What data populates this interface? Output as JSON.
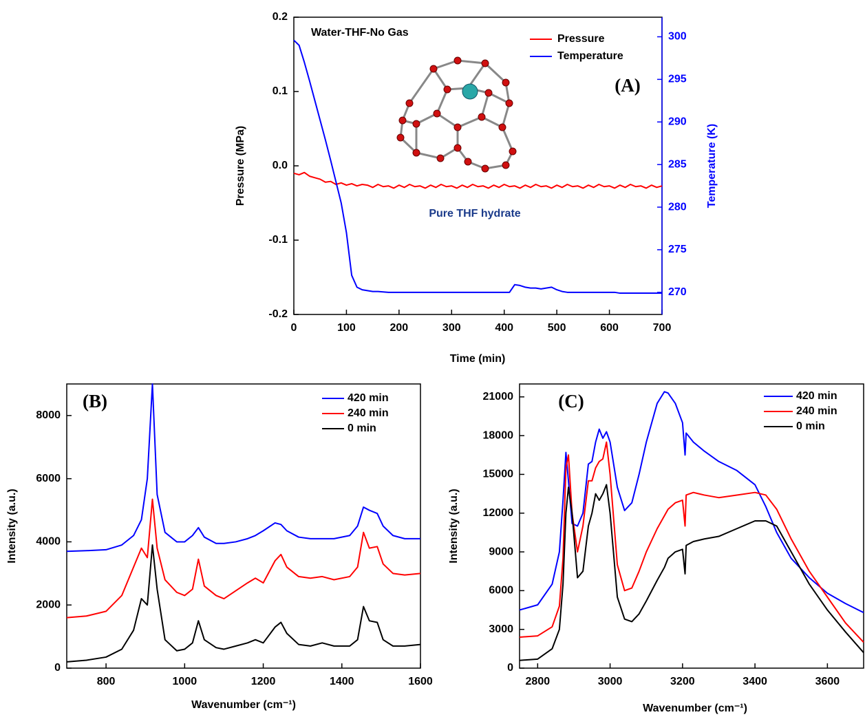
{
  "chart_data": [
    {
      "type": "line",
      "x": [
        0,
        10,
        20,
        30,
        40,
        50,
        60,
        70,
        80,
        90,
        100,
        110,
        120,
        130,
        140,
        150,
        160,
        170,
        180,
        190,
        200,
        210,
        220,
        230,
        240,
        250,
        260,
        270,
        280,
        290,
        300,
        310,
        320,
        330,
        340,
        350,
        360,
        370,
        380,
        390,
        400,
        410,
        420,
        430,
        440,
        450,
        460,
        470,
        480,
        490,
        500,
        510,
        520,
        530,
        540,
        550,
        560,
        570,
        580,
        590,
        600,
        610,
        620,
        630,
        640,
        650,
        660,
        670,
        680,
        690,
        700
      ],
      "series": [
        {
          "name": "Pressure",
          "color": "#ff0000",
          "values": [
            -0.01,
            -0.012,
            -0.009,
            -0.014,
            -0.016,
            -0.018,
            -0.022,
            -0.021,
            -0.025,
            -0.023,
            -0.026,
            -0.024,
            -0.027,
            -0.025,
            -0.026,
            -0.029,
            -0.025,
            -0.028,
            -0.027,
            -0.03,
            -0.026,
            -0.029,
            -0.025,
            -0.028,
            -0.027,
            -0.03,
            -0.026,
            -0.029,
            -0.025,
            -0.028,
            -0.027,
            -0.03,
            -0.026,
            -0.029,
            -0.025,
            -0.028,
            -0.027,
            -0.03,
            -0.026,
            -0.029,
            -0.025,
            -0.028,
            -0.027,
            -0.03,
            -0.026,
            -0.029,
            -0.025,
            -0.028,
            -0.027,
            -0.03,
            -0.026,
            -0.029,
            -0.025,
            -0.028,
            -0.027,
            -0.03,
            -0.026,
            -0.029,
            -0.025,
            -0.028,
            -0.027,
            -0.03,
            -0.026,
            -0.029,
            -0.025,
            -0.028,
            -0.027,
            -0.03,
            -0.026,
            -0.029,
            -0.027
          ]
        },
        {
          "name": "Temperature",
          "color": "#0000ff",
          "axis": "y2",
          "values": [
            299.6,
            299.0,
            297.0,
            294.8,
            292.5,
            290.2,
            287.9,
            285.5,
            283.0,
            280.5,
            277.0,
            272.0,
            270.6,
            270.3,
            270.2,
            270.1,
            270.1,
            270.05,
            270.0,
            270.0,
            270.0,
            270.0,
            270.0,
            270.0,
            270.0,
            270.0,
            270.0,
            270.0,
            270.0,
            270.0,
            270.0,
            270.0,
            270.0,
            270.0,
            270.0,
            270.0,
            270.0,
            270.0,
            270.0,
            270.0,
            270.0,
            270.0,
            270.9,
            270.8,
            270.6,
            270.5,
            270.5,
            270.4,
            270.5,
            270.6,
            270.3,
            270.1,
            270.0,
            270.0,
            270.0,
            270.0,
            270.0,
            270.0,
            270.0,
            270.0,
            270.0,
            270.0,
            269.9,
            269.9,
            269.9,
            269.9,
            269.9,
            269.9,
            269.9,
            269.9,
            269.9
          ]
        }
      ],
      "xlim": [
        0,
        700
      ],
      "ylim": [
        -0.2,
        0.2
      ],
      "y2lim": [
        267.4,
        302.3
      ],
      "xticks": [
        0,
        100,
        200,
        300,
        400,
        500,
        600,
        700
      ],
      "yticks": [
        -0.2,
        -0.1,
        {
          "value": 0,
          "label": "0.0"
        },
        0.1,
        0.2
      ],
      "y2ticks": [
        270,
        275,
        280,
        285,
        290,
        295,
        300
      ],
      "xlabel": "Time (min)",
      "ylabel": "Pressure (MPa)",
      "y2label": "Temperature (K)",
      "annotations": [
        "Water-THF-No Gas",
        "(A)",
        "Pure THF hydrate"
      ],
      "legend": "upper right"
    },
    {
      "type": "line",
      "x": [
        700,
        750,
        800,
        840,
        870,
        890,
        905,
        918,
        930,
        950,
        980,
        1000,
        1020,
        1035,
        1050,
        1080,
        1100,
        1130,
        1160,
        1180,
        1200,
        1230,
        1245,
        1260,
        1290,
        1320,
        1350,
        1380,
        1420,
        1440,
        1455,
        1470,
        1490,
        1505,
        1530,
        1560,
        1600
      ],
      "series": [
        {
          "name": "420 min",
          "color": "#0000ff",
          "values": [
            3700,
            3720,
            3750,
            3900,
            4200,
            4700,
            6000,
            9000,
            5500,
            4300,
            4000,
            4000,
            4200,
            4450,
            4150,
            3950,
            3950,
            4000,
            4100,
            4200,
            4350,
            4600,
            4550,
            4350,
            4150,
            4100,
            4100,
            4100,
            4200,
            4500,
            5100,
            5000,
            4900,
            4500,
            4200,
            4100,
            4100
          ]
        },
        {
          "name": "240 min",
          "color": "#ff0000",
          "values": [
            1600,
            1650,
            1800,
            2300,
            3200,
            3800,
            3500,
            5350,
            3800,
            2800,
            2400,
            2300,
            2500,
            3450,
            2600,
            2300,
            2200,
            2450,
            2700,
            2850,
            2700,
            3400,
            3600,
            3200,
            2900,
            2850,
            2900,
            2800,
            2900,
            3200,
            4300,
            3800,
            3850,
            3300,
            3000,
            2950,
            3000
          ]
        },
        {
          "name": "0 min",
          "color": "#000000",
          "values": [
            200,
            250,
            350,
            600,
            1200,
            2200,
            2000,
            3900,
            2500,
            900,
            550,
            600,
            800,
            1500,
            900,
            650,
            600,
            700,
            800,
            900,
            800,
            1300,
            1450,
            1100,
            750,
            700,
            800,
            700,
            700,
            900,
            1950,
            1500,
            1450,
            900,
            700,
            700,
            750
          ]
        }
      ],
      "xlim": [
        700,
        1600
      ],
      "ylim": [
        0,
        9000
      ],
      "xticks": [
        800,
        1000,
        1200,
        1400,
        1600
      ],
      "yticks": [
        0,
        2000,
        4000,
        6000,
        8000
      ],
      "xlabel": "Wavenumber (cm⁻¹)",
      "ylabel": "Intensity (a.u.)",
      "annotations": [
        "(B)"
      ],
      "legend": "upper right"
    },
    {
      "type": "line",
      "x": [
        2750,
        2800,
        2840,
        2860,
        2870,
        2878,
        2885,
        2895,
        2910,
        2925,
        2940,
        2950,
        2960,
        2970,
        2980,
        2990,
        3000,
        3020,
        3040,
        3060,
        3080,
        3100,
        3130,
        3150,
        3160,
        3180,
        3200,
        3207,
        3210,
        3230,
        3260,
        3300,
        3350,
        3400,
        3430,
        3460,
        3500,
        3550,
        3600,
        3650,
        3700
      ],
      "series": [
        {
          "name": "420 min",
          "color": "#0000ff",
          "values": [
            4500,
            4900,
            6500,
            9000,
            13000,
            16700,
            14500,
            11200,
            11000,
            12000,
            15800,
            16000,
            17500,
            18500,
            17800,
            18300,
            17500,
            14000,
            12200,
            12800,
            15000,
            17500,
            20500,
            21400,
            21300,
            20500,
            19000,
            16500,
            18200,
            17500,
            16800,
            16000,
            15300,
            14200,
            12500,
            10500,
            8500,
            7000,
            5800,
            5000,
            4300
          ]
        },
        {
          "name": "240 min",
          "color": "#ff0000",
          "values": [
            2400,
            2500,
            3200,
            4800,
            8500,
            15500,
            16500,
            12000,
            9000,
            11000,
            14500,
            14500,
            15500,
            16000,
            16200,
            17500,
            15000,
            8000,
            6000,
            6200,
            7500,
            9000,
            10800,
            11800,
            12300,
            12800,
            13000,
            11000,
            13400,
            13600,
            13400,
            13200,
            13400,
            13600,
            13400,
            12300,
            10000,
            7500,
            5500,
            3500,
            2000
          ]
        },
        {
          "name": "0 min",
          "color": "#000000",
          "values": [
            600,
            700,
            1500,
            3000,
            6500,
            12000,
            14000,
            12000,
            7000,
            7500,
            11000,
            12000,
            13500,
            13000,
            13500,
            14200,
            12000,
            5500,
            3800,
            3600,
            4200,
            5200,
            6800,
            7800,
            8500,
            9000,
            9200,
            7300,
            9500,
            9800,
            10000,
            10200,
            10800,
            11400,
            11400,
            11000,
            9000,
            6500,
            4500,
            2800,
            1200
          ]
        }
      ],
      "xlim": [
        2750,
        3700
      ],
      "ylim": [
        0,
        22000
      ],
      "xticks": [
        2800,
        3000,
        3200,
        3400,
        3600
      ],
      "yticks": [
        0,
        3000,
        6000,
        9000,
        12000,
        15000,
        18000,
        21000
      ],
      "xlabel": "Wavenumber (cm⁻¹)",
      "ylabel": "Intensity (a.u.)",
      "annotations": [
        "(C)"
      ],
      "legend": "upper right"
    }
  ]
}
